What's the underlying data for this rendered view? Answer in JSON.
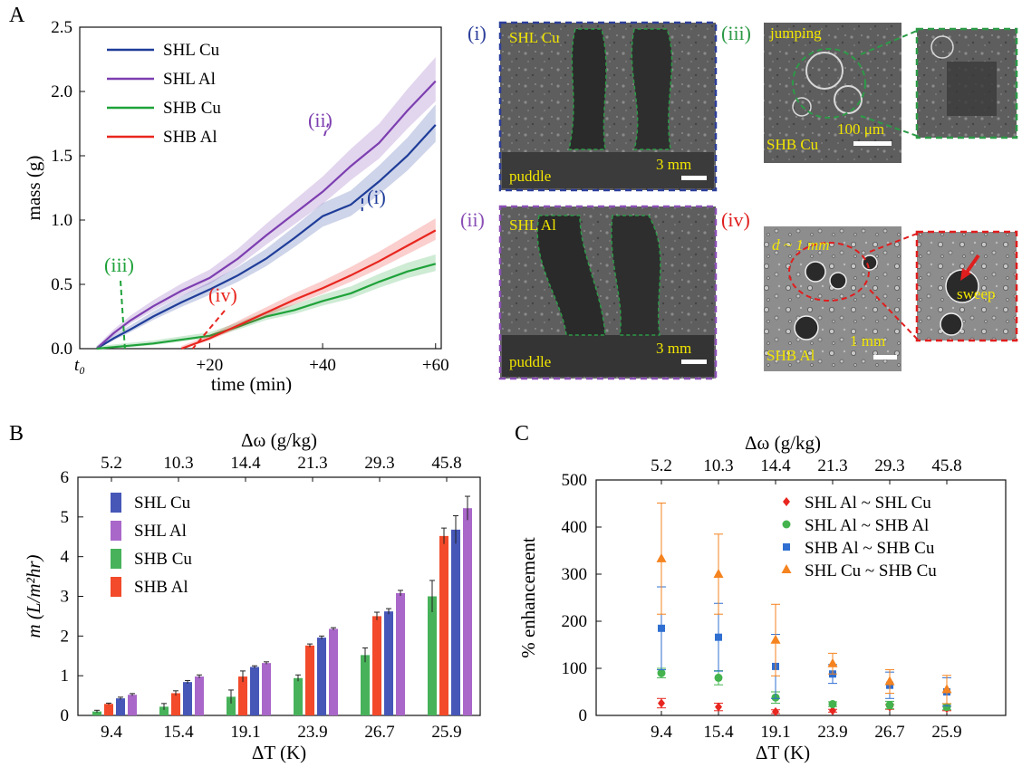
{
  "panel_labels": {
    "A": "A",
    "B": "B",
    "C": "C"
  },
  "colors": {
    "shl_cu": "#1f3d99",
    "shl_al": "#7d3fb0",
    "shb_cu": "#1fa23a",
    "shb_al": "#e8261f",
    "bar_shl_cu": "#4657b8",
    "bar_shl_al": "#a967c9",
    "bar_shb_cu": "#47b25a",
    "bar_shb_al": "#f24a2a",
    "c_red": "#e8261f",
    "c_green": "#44b34e",
    "c_blue": "#2f6fd1",
    "c_orange": "#f5831f",
    "annotation": "#f2e600",
    "frame_blue": "#2c3e9a",
    "frame_purple": "#8a4fb5",
    "frame_green": "#2c9a47",
    "frame_red": "#e01e1e"
  },
  "micrographs": {
    "i": {
      "tag": "(i)",
      "sample": "SHL Cu",
      "footer": "puddle",
      "scale": "3 mm"
    },
    "ii": {
      "tag": "(ii)",
      "sample": "SHL Al",
      "footer": "puddle",
      "scale": "3 mm"
    },
    "iii": {
      "tag": "(iii)",
      "note": "jumping",
      "sample": "SHB Cu",
      "scale": "100 μm"
    },
    "iv": {
      "tag": "(iv)",
      "note": "d ~ 1 mm",
      "sample": "SHB Al",
      "scale": "1 mm",
      "arrow_label": "sweep"
    }
  },
  "chart_data": [
    {
      "id": "A",
      "type": "line",
      "xlabel": "time (min)",
      "ylabel": "mass (g)",
      "xlim": [
        -3,
        61
      ],
      "ylim": [
        0,
        2.5
      ],
      "x_ticks": [
        {
          "v": -3,
          "label": "t₀"
        },
        {
          "v": 20,
          "label": "+20"
        },
        {
          "v": 40,
          "label": "+40"
        },
        {
          "v": 60,
          "label": "+60"
        }
      ],
      "y_ticks": [
        0,
        0.5,
        1.0,
        1.5,
        2.0,
        2.5
      ],
      "legend_position": "top-left",
      "series": [
        {
          "name": "SHL Cu",
          "x": [
            0,
            3,
            6,
            10,
            15,
            20,
            25,
            30,
            35,
            40,
            45,
            50,
            55,
            60
          ],
          "y": [
            0,
            0.08,
            0.15,
            0.25,
            0.36,
            0.46,
            0.57,
            0.7,
            0.86,
            1.03,
            1.12,
            1.3,
            1.5,
            1.74
          ]
        },
        {
          "name": "SHL Al",
          "x": [
            0,
            3,
            6,
            10,
            15,
            20,
            25,
            30,
            35,
            40,
            45,
            50,
            55,
            60
          ],
          "y": [
            0,
            0.12,
            0.22,
            0.33,
            0.45,
            0.55,
            0.7,
            0.88,
            1.05,
            1.22,
            1.42,
            1.6,
            1.85,
            2.08
          ]
        },
        {
          "name": "SHB Cu",
          "x": [
            0,
            5,
            10,
            15,
            20,
            25,
            30,
            35,
            40,
            45,
            50,
            55,
            60
          ],
          "y": [
            0,
            0.02,
            0.04,
            0.07,
            0.1,
            0.17,
            0.25,
            0.3,
            0.37,
            0.43,
            0.52,
            0.6,
            0.66
          ]
        },
        {
          "name": "SHB Al",
          "x": [
            15,
            20,
            25,
            30,
            35,
            40,
            45,
            50,
            55,
            60
          ],
          "y": [
            0,
            0.08,
            0.18,
            0.28,
            0.38,
            0.47,
            0.57,
            0.68,
            0.8,
            0.92
          ]
        }
      ],
      "annotations": [
        {
          "text": "(i)",
          "x": 47,
          "y": 1.07
        },
        {
          "text": "(ii)",
          "x": 41,
          "y": 1.75
        },
        {
          "text": "(iii)",
          "x": 5,
          "y": 0.0
        },
        {
          "text": "(iv)",
          "x": 17,
          "y": 0.0
        }
      ]
    },
    {
      "id": "B",
      "type": "bar",
      "xlabel": "ΔT (K)",
      "ylabel": "m (L/m²hr)",
      "top_axis_label": "Δω (g/kg)",
      "categories": [
        "9.4",
        "15.4",
        "19.1",
        "23.9",
        "26.7",
        "25.9"
      ],
      "top_categories": [
        "5.2",
        "10.3",
        "14.4",
        "21.3",
        "29.3",
        "45.8"
      ],
      "ylim": [
        0,
        6
      ],
      "y_ticks": [
        0,
        1,
        2,
        3,
        4,
        5,
        6
      ],
      "legend_position": "top-left",
      "series": [
        {
          "name": "SHL Cu",
          "values": [
            0.43,
            0.84,
            1.22,
            1.96,
            2.62,
            4.68
          ],
          "errors": [
            0.03,
            0.04,
            0.03,
            0.04,
            0.07,
            0.35
          ]
        },
        {
          "name": "SHL Al",
          "values": [
            0.52,
            0.98,
            1.32,
            2.18,
            3.08,
            5.22
          ],
          "errors": [
            0.03,
            0.04,
            0.03,
            0.03,
            0.07,
            0.3
          ]
        },
        {
          "name": "SHB Cu",
          "values": [
            0.1,
            0.22,
            0.47,
            0.94,
            1.52,
            3.0
          ],
          "errors": [
            0.03,
            0.08,
            0.17,
            0.08,
            0.18,
            0.4
          ]
        },
        {
          "name": "SHB Al",
          "values": [
            0.29,
            0.56,
            0.98,
            1.76,
            2.5,
            4.52
          ],
          "errors": [
            0.02,
            0.06,
            0.14,
            0.04,
            0.1,
            0.2
          ]
        }
      ],
      "bar_order": [
        "SHB Cu",
        "SHB Al",
        "SHL Cu",
        "SHL Al"
      ]
    },
    {
      "id": "C",
      "type": "scatter",
      "xlabel": "ΔT (K)",
      "ylabel": "% enhancement",
      "top_axis_label": "Δω (g/kg)",
      "categories": [
        "9.4",
        "15.4",
        "19.1",
        "23.9",
        "26.7",
        "25.9"
      ],
      "top_categories": [
        "5.2",
        "10.3",
        "14.4",
        "21.3",
        "29.3",
        "45.8"
      ],
      "ylim": [
        0,
        500
      ],
      "y_ticks": [
        0,
        100,
        200,
        300,
        400,
        500
      ],
      "legend_position": "top-right",
      "series": [
        {
          "name": "SHL Al ~ SHL Cu",
          "marker": "diamond",
          "values": [
            26,
            18,
            8,
            10,
            18,
            15
          ],
          "errors": [
            10,
            8,
            4,
            3,
            5,
            5
          ]
        },
        {
          "name": "SHL Al ~ SHB Al",
          "marker": "circle",
          "values": [
            90,
            80,
            38,
            24,
            22,
            18
          ],
          "errors": [
            10,
            15,
            12,
            5,
            8,
            6
          ]
        },
        {
          "name": "SHB Al ~ SHB Cu",
          "marker": "square",
          "values": [
            185,
            166,
            104,
            88,
            64,
            50
          ],
          "errors": [
            88,
            72,
            68,
            20,
            28,
            30
          ]
        },
        {
          "name": "SHL Cu ~ SHB Cu",
          "marker": "triangle",
          "values": [
            333,
            300,
            160,
            110,
            72,
            55
          ],
          "errors": [
            118,
            85,
            76,
            22,
            25,
            30
          ]
        }
      ]
    }
  ]
}
